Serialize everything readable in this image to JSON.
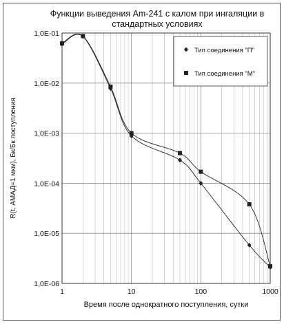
{
  "chart_data": {
    "type": "line",
    "title_lines": [
      "Функции выведения Am-241 с калом при ингаляции в",
      "стандартных условиях"
    ],
    "xlabel": "Время после однократного поступления, сутки",
    "ylabel": "R(t, АМАД=1 мкм), Бк/Бк поступления",
    "x_scale": "log",
    "y_scale": "log",
    "xlim": [
      1,
      1000
    ],
    "ylim": [
      1e-06,
      0.1
    ],
    "grid": true,
    "legend_position": "top-right",
    "x_ticks": [
      {
        "value": 1,
        "label": "1"
      },
      {
        "value": 10,
        "label": "10"
      },
      {
        "value": 100,
        "label": "100"
      },
      {
        "value": 1000,
        "label": "1000"
      }
    ],
    "y_ticks": [
      {
        "value": 0.1,
        "label": "1,0E-01"
      },
      {
        "value": 0.01,
        "label": "1,0E-02"
      },
      {
        "value": 0.001,
        "label": "1,0E-03"
      },
      {
        "value": 0.0001,
        "label": "1,0E-04"
      },
      {
        "value": 1e-05,
        "label": "1,0E-05"
      },
      {
        "value": 1e-06,
        "label": "1,0E-06"
      }
    ],
    "series": [
      {
        "name": "Тип соединения \"П\"",
        "marker": "diamond",
        "color": "#222222",
        "points": [
          [
            1,
            0.06
          ],
          [
            2,
            0.085
          ],
          [
            5,
            0.0078
          ],
          [
            10,
            0.00088
          ],
          [
            50,
            0.00029
          ],
          [
            100,
            0.0001
          ],
          [
            500,
            5.8e-06
          ],
          [
            1000,
            2.1e-06
          ]
        ]
      },
      {
        "name": "Тип соединения \"М\"",
        "marker": "square",
        "color": "#222222",
        "points": [
          [
            1,
            0.062
          ],
          [
            2,
            0.087
          ],
          [
            5,
            0.0085
          ],
          [
            10,
            0.001
          ],
          [
            50,
            0.0004
          ],
          [
            100,
            0.00017
          ],
          [
            500,
            3.8e-05
          ],
          [
            1000,
            2.2e-06
          ]
        ]
      }
    ]
  }
}
